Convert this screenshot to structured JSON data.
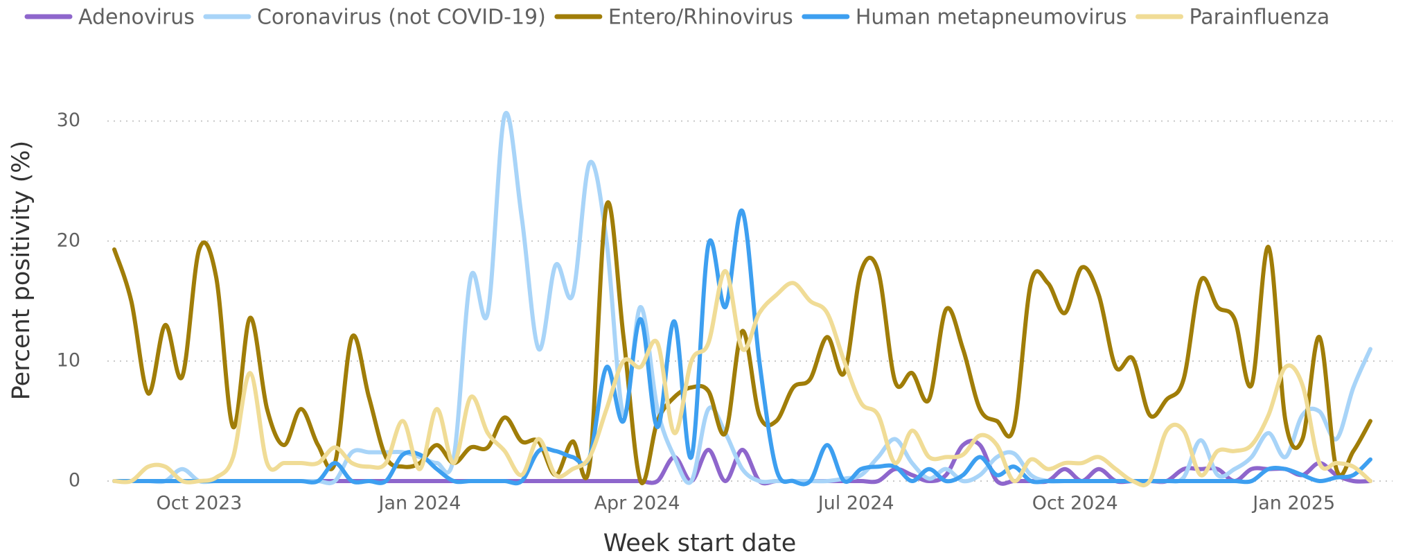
{
  "chart_data": {
    "type": "line",
    "xlabel": "Week start date",
    "ylabel": "Percent positivity (%)",
    "x": [
      0,
      1,
      2,
      3,
      4,
      5,
      6,
      7,
      8,
      9,
      10,
      11,
      12,
      13,
      14,
      15,
      16,
      17,
      18,
      19,
      20,
      21,
      22,
      23,
      24,
      25,
      26,
      27,
      28,
      29,
      30,
      31,
      32,
      33,
      34,
      35,
      36,
      37,
      38,
      39,
      40,
      41,
      42,
      43,
      44,
      45,
      46,
      47,
      48,
      49,
      50,
      51,
      52,
      53,
      54,
      55,
      56,
      57,
      58,
      59,
      60,
      61,
      62,
      63,
      64,
      65,
      66,
      67,
      68,
      69,
      70,
      71,
      72,
      73,
      74
    ],
    "xlim": [
      0,
      74
    ],
    "xticks": [
      {
        "value": 5,
        "label": "Oct 2023"
      },
      {
        "value": 18,
        "label": "Jan 2024"
      },
      {
        "value": 30.8,
        "label": "Apr 2024"
      },
      {
        "value": 43.7,
        "label": "Jul 2024"
      },
      {
        "value": 56.6,
        "label": "Oct 2024"
      },
      {
        "value": 69.5,
        "label": "Jan 2025"
      }
    ],
    "ylim": [
      0,
      32
    ],
    "yticks": [
      0,
      10,
      20,
      30
    ],
    "grid": true,
    "legend": "top",
    "series": [
      {
        "name": "Adenovirus",
        "color": "#8e66cc",
        "values": [
          0,
          0,
          0,
          0,
          0,
          0,
          0,
          0,
          0,
          0,
          0,
          0,
          0,
          0,
          0,
          0,
          0,
          0,
          0,
          0,
          0,
          0,
          0,
          0,
          0,
          0,
          0,
          0,
          0,
          0,
          0,
          0,
          0,
          2,
          0,
          2.6,
          0,
          2.6,
          0,
          0,
          0,
          0,
          0,
          0,
          0,
          0,
          1,
          0.5,
          0,
          0.5,
          3,
          3,
          0,
          0,
          0,
          0,
          1,
          0,
          1,
          0,
          0,
          0,
          0,
          1,
          1,
          1,
          0,
          1,
          1,
          1,
          0.5,
          1.5,
          0.5,
          0,
          0
        ]
      },
      {
        "name": "Coronavirus (not COVID-19)",
        "color": "#a8d4f8",
        "values": [
          0,
          0,
          0,
          0,
          1,
          0,
          0,
          0,
          0,
          0,
          0,
          0,
          0,
          0,
          2.4,
          2.4,
          2.4,
          2.4,
          2,
          1.5,
          2,
          17,
          14,
          30.5,
          22,
          11,
          18,
          15.5,
          26.5,
          20,
          5.5,
          14.5,
          6,
          2,
          0,
          6,
          4,
          1,
          0,
          0,
          0,
          0,
          0,
          0.2,
          0.5,
          2,
          3.5,
          1.5,
          0.2,
          1,
          0,
          0.5,
          2,
          2.3,
          0.5,
          0,
          0,
          0,
          0,
          0,
          0,
          0,
          0,
          0.3,
          3.4,
          0.5,
          1,
          2,
          4,
          2,
          5.5,
          5.8,
          3.5,
          7.8,
          11
        ]
      },
      {
        "name": "Entero/Rhinovirus",
        "color": "#a07d08",
        "values": [
          19.3,
          15,
          7.3,
          13,
          8.7,
          19.3,
          17,
          4.5,
          13.6,
          6,
          3,
          6,
          3,
          1.5,
          12,
          7,
          2,
          1.2,
          1.5,
          3,
          1.5,
          2.8,
          2.8,
          5.3,
          3.3,
          3.3,
          0.5,
          3.3,
          1.3,
          23,
          12,
          0,
          5,
          7,
          7.8,
          7.5,
          4,
          12.5,
          5.5,
          5,
          7.8,
          8.5,
          12,
          9,
          17.5,
          17.5,
          8.3,
          9,
          6.8,
          14.3,
          11,
          6,
          5,
          4.5,
          16.5,
          16.5,
          14,
          17.8,
          15.5,
          9.5,
          10.2,
          5.5,
          6.8,
          8.5,
          16.7,
          14.5,
          13.5,
          8,
          19.5,
          5,
          3.5,
          12,
          1,
          2.5,
          5
        ]
      },
      {
        "name": "Human metapneumovirus",
        "color": "#3d9ff0",
        "values": [
          0,
          0,
          0,
          0,
          0,
          0,
          0,
          0,
          0,
          0,
          0,
          0,
          0,
          1.5,
          0,
          0,
          0,
          2.2,
          2.2,
          1,
          0,
          0,
          0,
          0,
          0,
          2.5,
          2.5,
          2,
          2,
          9.5,
          5,
          13.5,
          4.5,
          13.3,
          2,
          19.7,
          14.5,
          22.5,
          10,
          1,
          0,
          0,
          3,
          0,
          1,
          1.2,
          1.2,
          0,
          1,
          0,
          0.5,
          2,
          0.5,
          1.2,
          0,
          0,
          0,
          0,
          0,
          0,
          0,
          0,
          0,
          0,
          0,
          0,
          0,
          0,
          1,
          1,
          0.5,
          0,
          0.3,
          0.5,
          1.8
        ]
      },
      {
        "name": "Parainfluenza",
        "color": "#f0dc96",
        "values": [
          0,
          0,
          1.2,
          1.2,
          0,
          0,
          0.3,
          2,
          9,
          1.5,
          1.5,
          1.5,
          1.5,
          2.8,
          1.5,
          1.2,
          1.5,
          5,
          1,
          6,
          1.5,
          7,
          4,
          2.5,
          0.5,
          3.5,
          0.5,
          1,
          2,
          6,
          10,
          9.5,
          11.5,
          4,
          10,
          11.5,
          17.5,
          11,
          14,
          15.5,
          16.5,
          15,
          14,
          10,
          6.5,
          5.5,
          1.5,
          4.2,
          2,
          2,
          2.2,
          3.8,
          3,
          0,
          1.8,
          1,
          1.5,
          1.5,
          2,
          1,
          0,
          0,
          4.2,
          4.2,
          0.5,
          2.5,
          2.5,
          3,
          5.5,
          9.5,
          8,
          1.5,
          1.5,
          1.2,
          0
        ]
      }
    ]
  }
}
